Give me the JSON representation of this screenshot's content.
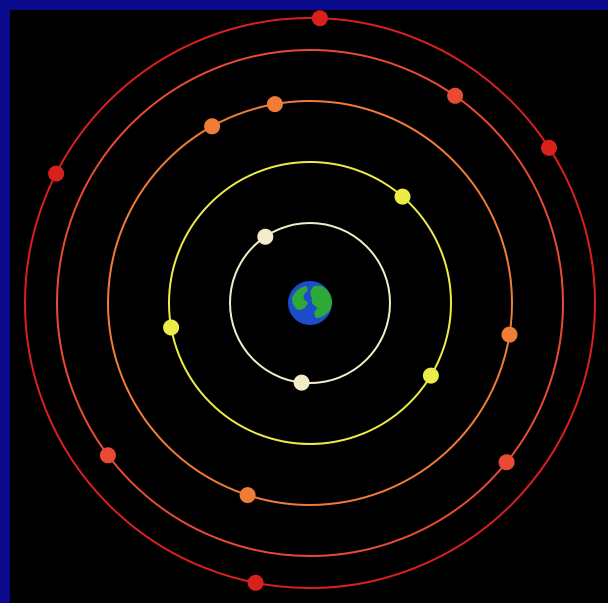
{
  "diagram": {
    "background_color": "#000000",
    "border_color": "#0a0a8c",
    "center": {
      "icon": "earth-icon",
      "ocean_color": "#1c4ccc",
      "land_color": "#2ea836"
    },
    "orbits": [
      {
        "color": "#f2ecc8",
        "satellite_count": 2
      },
      {
        "color": "#ecec48",
        "satellite_count": 3
      },
      {
        "color": "#f07c38",
        "satellite_count": 4
      },
      {
        "color": "#e84a34",
        "satellite_count": 3
      },
      {
        "color": "#d8201c",
        "satellite_count": 4
      }
    ]
  }
}
